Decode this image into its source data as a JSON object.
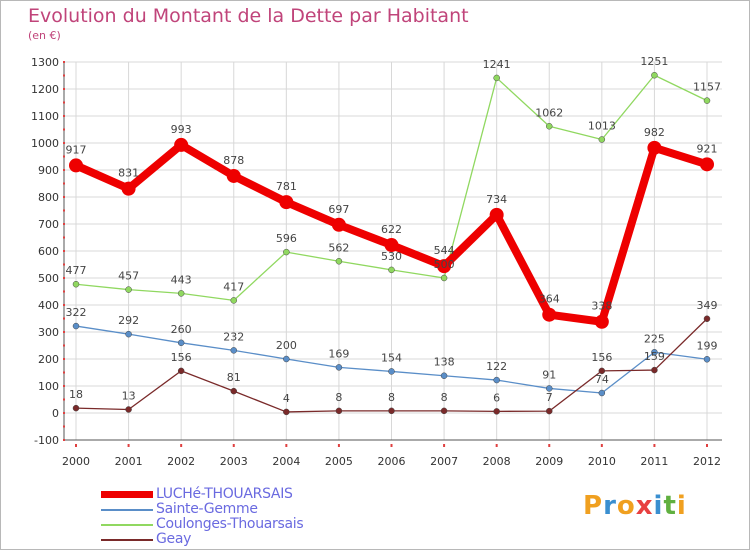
{
  "title": "Evolution du Montant de la Dette par Habitant",
  "subtitle": "(en €)",
  "logo_text": "Proxiti",
  "colors": {
    "title": "#c0447a",
    "legend_text": "#6a6ae0",
    "grid": "#d8d8d8",
    "axis": "#555555"
  },
  "chart_data": {
    "type": "line",
    "title": "Evolution du Montant de la Dette par Habitant",
    "ylabel": "(en €)",
    "xlabel": "",
    "x": [
      "2000",
      "2001",
      "2002",
      "2003",
      "2004",
      "2005",
      "2006",
      "2007",
      "2008",
      "2009",
      "2010",
      "2011",
      "2012"
    ],
    "ylim": [
      -100,
      1300
    ],
    "yticks": [
      -100,
      0,
      100,
      200,
      300,
      400,
      500,
      600,
      700,
      800,
      900,
      1000,
      1100,
      1200,
      1300
    ],
    "grid": true,
    "legend_position": "bottom-left",
    "series": [
      {
        "name": "LUCHé-THOUARSAIS",
        "color": "#ee0000",
        "bold": true,
        "values": [
          917,
          831,
          993,
          878,
          781,
          697,
          622,
          544,
          734,
          364,
          338,
          982,
          921
        ]
      },
      {
        "name": "Sainte-Gemme",
        "color": "#5a8ec8",
        "bold": false,
        "values": [
          322,
          292,
          260,
          232,
          200,
          169,
          154,
          138,
          122,
          91,
          74,
          225,
          199
        ]
      },
      {
        "name": "Coulonges-Thouarsais",
        "color": "#90d860",
        "bold": false,
        "values": [
          477,
          457,
          443,
          417,
          596,
          562,
          530,
          500,
          1241,
          1062,
          1013,
          1251,
          1157
        ]
      },
      {
        "name": "Geay",
        "color": "#7a2a2a",
        "bold": false,
        "values": [
          18,
          13,
          156,
          81,
          4,
          8,
          8,
          8,
          6,
          7,
          156,
          159,
          349
        ]
      }
    ],
    "data_labels": {
      "LUCHé-THOUARSAIS": [
        "917",
        "831",
        "993",
        "878",
        "781",
        "697",
        "622",
        "544",
        "734",
        "364",
        "338",
        "982",
        "921"
      ],
      "Sainte-Gemme": [
        "322",
        "292",
        "260",
        "232",
        "200",
        "169",
        "154",
        "138",
        "122",
        "91",
        "74",
        "225",
        "199"
      ],
      "Coulonges-Thouarsais": [
        "477",
        "457",
        "443",
        "417",
        "596",
        "562",
        "530",
        "500",
        "1241",
        "1062",
        "1013",
        "1251",
        "1157"
      ],
      "Geay": [
        "18",
        "13",
        "156",
        "81",
        "4",
        "8",
        "8",
        "8",
        "6",
        "7",
        "156",
        "159",
        "349"
      ]
    }
  }
}
